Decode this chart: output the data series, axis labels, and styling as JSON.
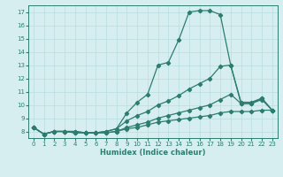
{
  "x": [
    0,
    1,
    2,
    3,
    4,
    5,
    6,
    7,
    8,
    9,
    10,
    11,
    12,
    13,
    14,
    15,
    16,
    17,
    18,
    19,
    20,
    21,
    22,
    23
  ],
  "line1": [
    8.3,
    7.8,
    8.0,
    8.0,
    8.0,
    7.9,
    7.9,
    8.0,
    8.2,
    9.4,
    10.2,
    10.8,
    13.0,
    13.2,
    14.9,
    17.0,
    17.1,
    17.1,
    16.8,
    13.0,
    10.1,
    10.1,
    10.5,
    9.6
  ],
  "line2": [
    8.3,
    7.8,
    8.0,
    8.0,
    8.0,
    7.9,
    7.9,
    8.0,
    8.2,
    8.8,
    9.2,
    9.5,
    10.0,
    10.3,
    10.7,
    11.2,
    11.6,
    12.0,
    12.9,
    13.0,
    10.2,
    10.2,
    10.5,
    9.6
  ],
  "line3": [
    8.3,
    7.8,
    8.0,
    8.0,
    7.9,
    7.9,
    7.9,
    7.9,
    8.0,
    8.3,
    8.5,
    8.7,
    9.0,
    9.2,
    9.4,
    9.6,
    9.8,
    10.0,
    10.4,
    10.8,
    10.1,
    10.1,
    10.4,
    9.6
  ],
  "line4": [
    8.3,
    7.8,
    8.0,
    8.0,
    7.9,
    7.9,
    7.9,
    7.9,
    8.0,
    8.2,
    8.3,
    8.5,
    8.7,
    8.8,
    8.9,
    9.0,
    9.1,
    9.2,
    9.4,
    9.5,
    9.5,
    9.5,
    9.6,
    9.6
  ],
  "line_color": "#2d7d6e",
  "bg_color": "#d6eef0",
  "grid_color": "#b8dde0",
  "xlabel": "Humidex (Indice chaleur)",
  "ylim": [
    7.5,
    17.5
  ],
  "xlim": [
    -0.5,
    23.5
  ],
  "yticks": [
    8,
    9,
    10,
    11,
    12,
    13,
    14,
    15,
    16,
    17
  ],
  "xticks": [
    0,
    1,
    2,
    3,
    4,
    5,
    6,
    7,
    8,
    9,
    10,
    11,
    12,
    13,
    14,
    15,
    16,
    17,
    18,
    19,
    20,
    21,
    22,
    23
  ],
  "marker": "D",
  "markersize": 2.2,
  "linewidth": 0.9,
  "tick_fontsize": 5.0,
  "xlabel_fontsize": 6.0
}
